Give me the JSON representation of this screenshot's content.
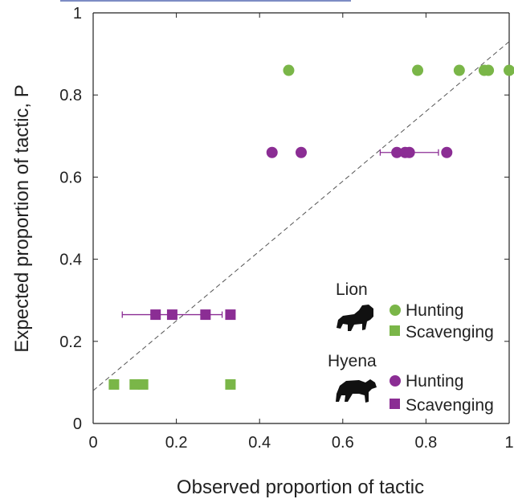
{
  "chart_data": {
    "type": "scatter",
    "xlabel": "Observed proportion of tactic",
    "ylabel": "Expected proportion of tactic, P",
    "xlim": [
      0,
      1
    ],
    "ylim": [
      0,
      1
    ],
    "xticks": [
      0,
      0.2,
      0.4,
      0.6,
      0.8,
      1
    ],
    "yticks": [
      0,
      0.2,
      0.4,
      0.6,
      0.8,
      1
    ],
    "xtick_labels": [
      "0",
      "0.2",
      "0.4",
      "0.6",
      "0.8",
      "1"
    ],
    "ytick_labels": [
      "0",
      "0.2",
      "0.4",
      "0.6",
      "0.8",
      "1"
    ],
    "grid": false,
    "reference_line": {
      "style": "dashed",
      "points": [
        [
          0,
          0.08
        ],
        [
          1,
          0.93
        ]
      ]
    },
    "series": [
      {
        "name": "Hunting",
        "group": "Lion",
        "marker": "circle",
        "color": "#7ab648",
        "points": [
          [
            0.47,
            0.86
          ],
          [
            0.78,
            0.86
          ],
          [
            0.88,
            0.86
          ],
          [
            0.94,
            0.86
          ],
          [
            0.95,
            0.86
          ],
          [
            1.0,
            0.86
          ]
        ]
      },
      {
        "name": "Scavenging",
        "group": "Lion",
        "marker": "square",
        "color": "#7ab648",
        "points": [
          [
            0.05,
            0.095
          ],
          [
            0.1,
            0.095
          ],
          [
            0.12,
            0.095
          ],
          [
            0.33,
            0.095
          ]
        ]
      },
      {
        "name": "Hunting",
        "group": "Hyena",
        "marker": "circle",
        "color": "#8b2d94",
        "points": [
          [
            0.43,
            0.66
          ],
          [
            0.5,
            0.66
          ],
          [
            0.73,
            0.66
          ],
          [
            0.75,
            0.66
          ],
          [
            0.76,
            0.66
          ],
          [
            0.85,
            0.66
          ]
        ],
        "error_bar": {
          "y": 0.66,
          "xmin": 0.69,
          "xmax": 0.83,
          "center": 0.76
        }
      },
      {
        "name": "Scavenging",
        "group": "Hyena",
        "marker": "square",
        "color": "#8b2d94",
        "points": [
          [
            0.15,
            0.265
          ],
          [
            0.19,
            0.265
          ],
          [
            0.27,
            0.265
          ],
          [
            0.33,
            0.265
          ]
        ],
        "error_bar": {
          "y": 0.265,
          "xmin": 0.07,
          "xmax": 0.31,
          "center": 0.19
        }
      }
    ],
    "legend": {
      "placement": "bottom-right",
      "groups": [
        {
          "title": "Lion",
          "icon": "lion-silhouette-icon",
          "entries": [
            "Hunting",
            "Scavenging"
          ]
        },
        {
          "title": "Hyena",
          "icon": "hyena-silhouette-icon",
          "entries": [
            "Hunting",
            "Scavenging"
          ]
        }
      ]
    }
  }
}
